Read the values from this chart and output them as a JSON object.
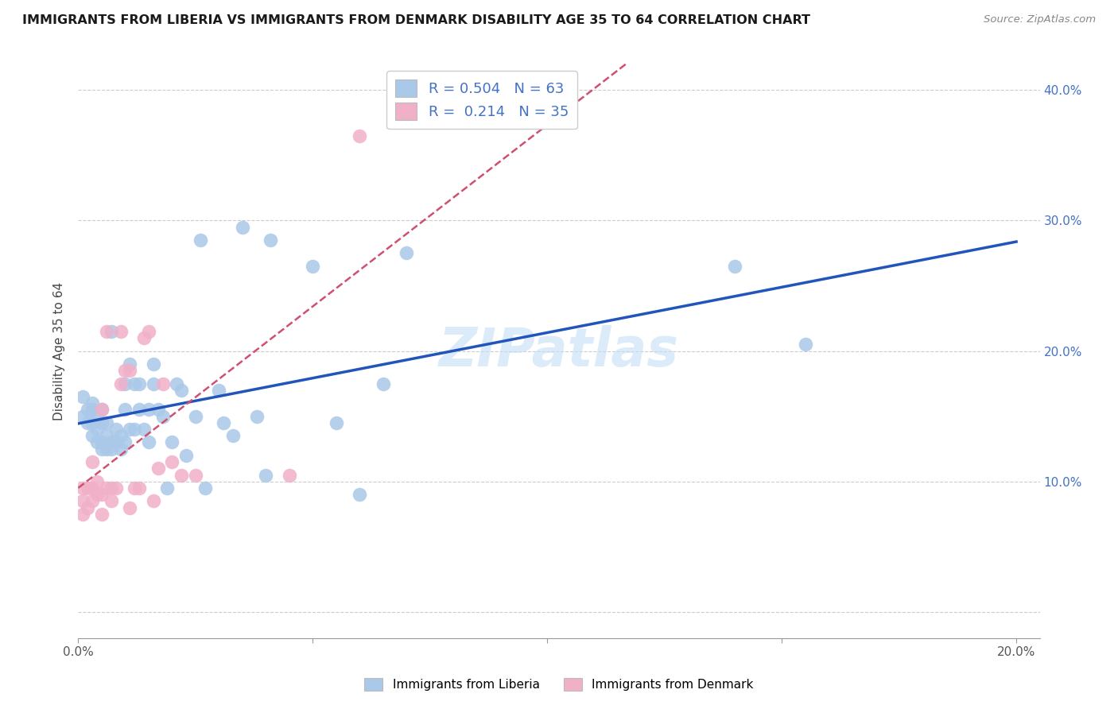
{
  "title": "IMMIGRANTS FROM LIBERIA VS IMMIGRANTS FROM DENMARK DISABILITY AGE 35 TO 64 CORRELATION CHART",
  "source": "Source: ZipAtlas.com",
  "ylabel": "Disability Age 35 to 64",
  "xlim": [
    0.0,
    0.205
  ],
  "ylim": [
    -0.02,
    0.42
  ],
  "ytick_positions": [
    0.0,
    0.1,
    0.2,
    0.3,
    0.4
  ],
  "ytick_labels": [
    "",
    "10.0%",
    "20.0%",
    "30.0%",
    "40.0%"
  ],
  "xtick_positions": [
    0.0,
    0.05,
    0.1,
    0.15,
    0.2
  ],
  "xtick_labels": [
    "0.0%",
    "",
    "",
    "",
    "20.0%"
  ],
  "color_liberia": "#aac8e8",
  "color_denmark": "#f0b0c8",
  "line_color_liberia": "#2255bb",
  "line_color_denmark": "#d05070",
  "watermark": "ZIPatlas",
  "scatter_liberia_x": [
    0.001,
    0.001,
    0.002,
    0.002,
    0.003,
    0.003,
    0.003,
    0.003,
    0.004,
    0.004,
    0.004,
    0.005,
    0.005,
    0.005,
    0.005,
    0.006,
    0.006,
    0.006,
    0.007,
    0.007,
    0.007,
    0.008,
    0.008,
    0.009,
    0.009,
    0.01,
    0.01,
    0.01,
    0.011,
    0.011,
    0.012,
    0.012,
    0.013,
    0.013,
    0.014,
    0.015,
    0.015,
    0.016,
    0.016,
    0.017,
    0.018,
    0.019,
    0.02,
    0.021,
    0.022,
    0.023,
    0.025,
    0.026,
    0.027,
    0.03,
    0.031,
    0.033,
    0.035,
    0.038,
    0.04,
    0.041,
    0.05,
    0.055,
    0.06,
    0.065,
    0.07,
    0.14,
    0.155
  ],
  "scatter_liberia_y": [
    0.15,
    0.165,
    0.145,
    0.155,
    0.135,
    0.145,
    0.155,
    0.16,
    0.13,
    0.14,
    0.15,
    0.125,
    0.13,
    0.145,
    0.155,
    0.125,
    0.135,
    0.145,
    0.125,
    0.13,
    0.215,
    0.13,
    0.14,
    0.125,
    0.135,
    0.13,
    0.155,
    0.175,
    0.14,
    0.19,
    0.14,
    0.175,
    0.155,
    0.175,
    0.14,
    0.13,
    0.155,
    0.175,
    0.19,
    0.155,
    0.15,
    0.095,
    0.13,
    0.175,
    0.17,
    0.12,
    0.15,
    0.285,
    0.095,
    0.17,
    0.145,
    0.135,
    0.295,
    0.15,
    0.105,
    0.285,
    0.265,
    0.145,
    0.09,
    0.175,
    0.275,
    0.265,
    0.205
  ],
  "scatter_denmark_x": [
    0.001,
    0.001,
    0.001,
    0.002,
    0.002,
    0.003,
    0.003,
    0.003,
    0.004,
    0.004,
    0.005,
    0.005,
    0.005,
    0.006,
    0.006,
    0.007,
    0.007,
    0.008,
    0.009,
    0.009,
    0.01,
    0.011,
    0.011,
    0.012,
    0.013,
    0.014,
    0.015,
    0.016,
    0.017,
    0.018,
    0.02,
    0.022,
    0.025,
    0.045,
    0.06
  ],
  "scatter_denmark_y": [
    0.075,
    0.085,
    0.095,
    0.08,
    0.095,
    0.085,
    0.095,
    0.115,
    0.09,
    0.1,
    0.075,
    0.09,
    0.155,
    0.095,
    0.215,
    0.085,
    0.095,
    0.095,
    0.215,
    0.175,
    0.185,
    0.08,
    0.185,
    0.095,
    0.095,
    0.21,
    0.215,
    0.085,
    0.11,
    0.175,
    0.115,
    0.105,
    0.105,
    0.105,
    0.365
  ]
}
